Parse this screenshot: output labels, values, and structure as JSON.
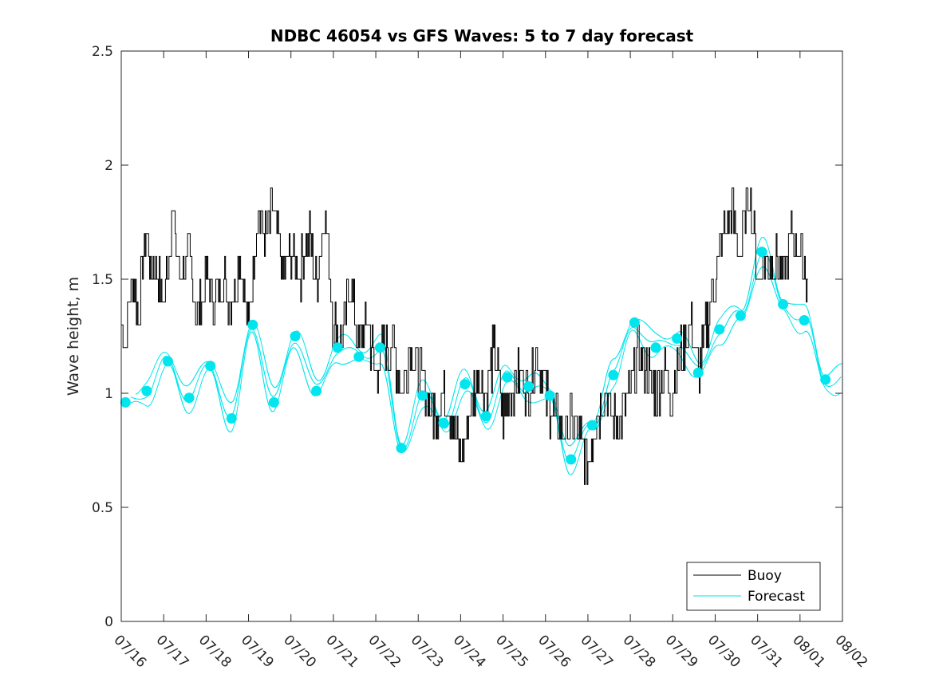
{
  "chart_data": {
    "type": "line",
    "title": "NDBC 46054 vs GFS Waves: 5 to 7 day forecast",
    "xlabel": "",
    "ylabel": "Wave height, m",
    "ylim": [
      0,
      2.5
    ],
    "yticks": [
      "0",
      "0.5",
      "1",
      "1.5",
      "2",
      "2.5"
    ],
    "xlim_days": [
      0,
      17
    ],
    "xtick_labels": [
      "07/16",
      "07/17",
      "07/18",
      "07/19",
      "07/20",
      "07/21",
      "07/22",
      "07/23",
      "07/24",
      "07/25",
      "07/26",
      "07/27",
      "07/28",
      "07/29",
      "07/30",
      "07/31",
      "08/01",
      "08/02"
    ],
    "grid": false,
    "legend": {
      "position": "bottom-right",
      "entries": [
        "Buoy",
        "Forecast"
      ]
    },
    "colors": {
      "buoy": "#000000",
      "forecast": "#00e5ee",
      "axis": "#262626"
    },
    "series": [
      {
        "name": "Buoy",
        "x": [
          0,
          0.1,
          0.2,
          0.3,
          0.4,
          0.5,
          0.6,
          0.7,
          0.8,
          0.9,
          1.0,
          1.2,
          1.4,
          1.6,
          1.8,
          2.0,
          2.2,
          2.4,
          2.6,
          2.8,
          3.0,
          3.2,
          3.4,
          3.6,
          3.8,
          4.0,
          4.2,
          4.4,
          4.6,
          4.8,
          5.0,
          5.2,
          5.4,
          5.6,
          5.8,
          6.0,
          6.2,
          6.4,
          6.6,
          6.8,
          7.0,
          7.2,
          7.4,
          7.6,
          7.8,
          8.0,
          8.2,
          8.4,
          8.6,
          8.8,
          9.0,
          9.2,
          9.4,
          9.6,
          9.8,
          10.0,
          10.2,
          10.4,
          10.6,
          10.8,
          11.0,
          11.2,
          11.4,
          11.6,
          11.8,
          12.0,
          12.2,
          12.4,
          12.6,
          12.8,
          13.0,
          13.2,
          13.4,
          13.6,
          13.8,
          14.0,
          14.2,
          14.4,
          14.6,
          14.8,
          15.0,
          15.2,
          15.4,
          15.6,
          15.8,
          16.0,
          16.2
        ],
        "y": [
          1.35,
          1.2,
          1.4,
          1.5,
          1.3,
          1.6,
          1.7,
          1.5,
          1.6,
          1.5,
          1.4,
          1.8,
          1.5,
          1.6,
          1.3,
          1.5,
          1.4,
          1.5,
          1.4,
          1.6,
          1.3,
          1.8,
          1.7,
          1.8,
          1.5,
          1.6,
          1.5,
          1.7,
          1.5,
          1.8,
          1.3,
          1.2,
          1.5,
          1.2,
          1.3,
          1.1,
          1.2,
          1.2,
          1.0,
          1.2,
          1.1,
          1.0,
          0.9,
          1.0,
          0.9,
          0.7,
          0.9,
          1.1,
          1.0,
          1.2,
          0.9,
          1.0,
          1.1,
          1.0,
          1.2,
          1.0,
          0.9,
          0.8,
          0.9,
          0.8,
          0.7,
          0.9,
          1.0,
          0.9,
          0.9,
          1.0,
          1.2,
          1.1,
          1.0,
          1.1,
          1.0,
          1.2,
          1.3,
          1.1,
          1.3,
          1.5,
          1.7,
          1.8,
          1.6,
          1.9,
          1.5,
          1.6,
          1.6,
          1.5,
          1.7,
          1.6,
          1.5
        ]
      },
      {
        "name": "Forecast",
        "x": [
          0.1,
          0.6,
          1.1,
          1.6,
          2.1,
          2.6,
          3.1,
          3.6,
          4.1,
          4.6,
          5.1,
          5.6,
          6.1,
          6.6,
          7.1,
          7.6,
          8.1,
          8.6,
          9.1,
          9.6,
          10.1,
          10.6,
          11.1,
          11.6,
          12.1,
          12.6,
          13.1,
          13.6,
          14.1,
          14.6,
          15.1,
          15.6,
          16.1,
          16.6
        ],
        "y": [
          0.96,
          1.01,
          1.14,
          0.98,
          1.12,
          0.89,
          1.3,
          0.96,
          1.25,
          1.01,
          1.2,
          1.16,
          1.2,
          0.76,
          0.99,
          0.87,
          1.04,
          0.9,
          1.07,
          1.03,
          0.99,
          0.71,
          0.86,
          1.08,
          1.31,
          1.2,
          1.24,
          1.09,
          1.28,
          1.34,
          1.62,
          1.39,
          1.32,
          1.06
        ]
      }
    ]
  }
}
